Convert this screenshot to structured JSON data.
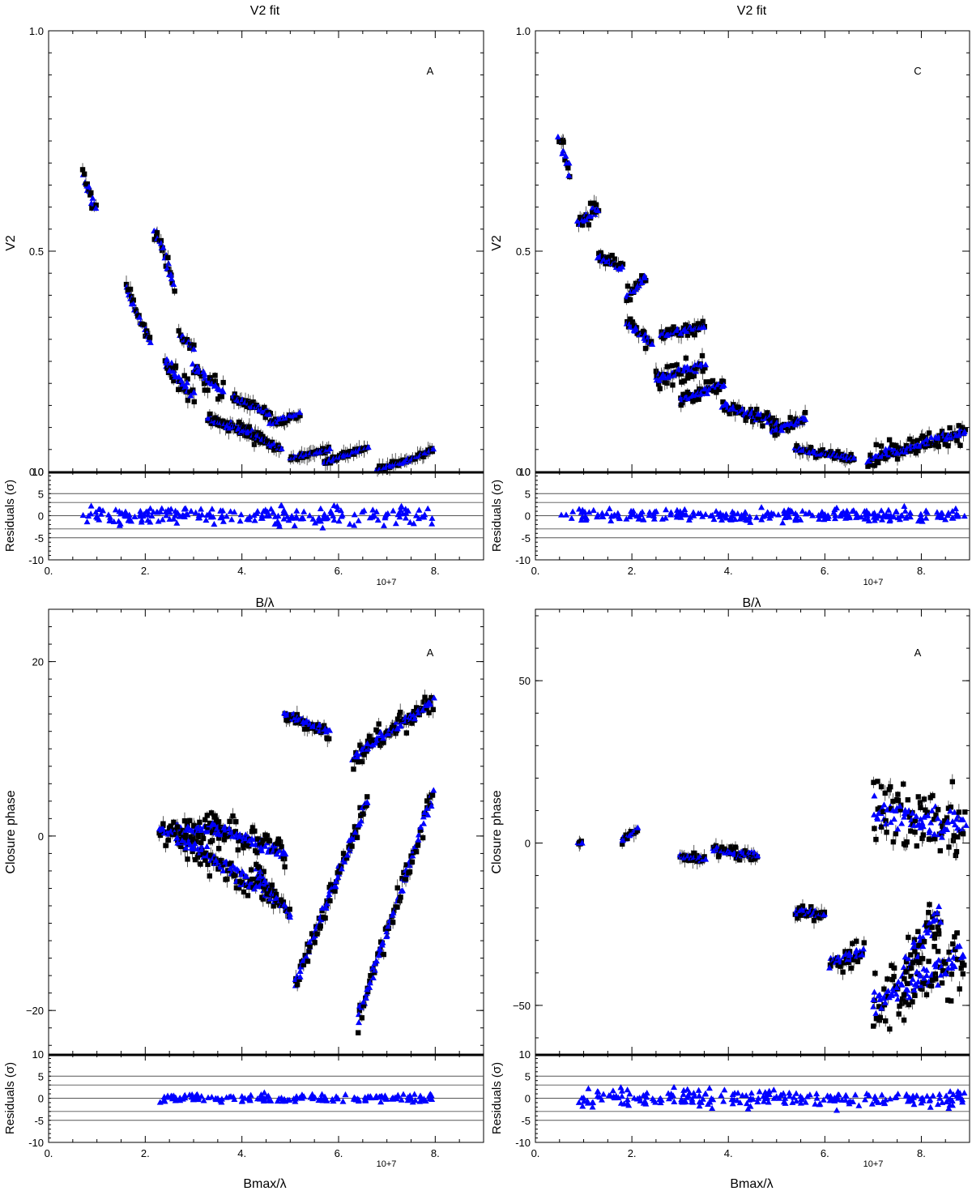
{
  "colors": {
    "observed": "#000000",
    "model": "#0000ff",
    "axis": "#000000",
    "residual_lines": "#555555"
  },
  "residual_label": "Residuals (σ)",
  "residual_ticks": [
    "10",
    "5",
    "0",
    "-5",
    "-10"
  ],
  "x_ticks": [
    "0.",
    "2.",
    "4.",
    "6.",
    "8."
  ],
  "x_multiplier": "10+7",
  "chart_data": [
    {
      "type": "scatter",
      "title": "V2  fit",
      "panel_label": "A",
      "xlabel": "B/λ",
      "ylabel": "V2",
      "xlim": [
        0,
        9
      ],
      "ylim": [
        0,
        1
      ],
      "y_ticks": [
        {
          "value": 0,
          "label": "0.0"
        },
        {
          "value": 0.5,
          "label": "0.5"
        },
        {
          "value": 1,
          "label": "1.0"
        }
      ],
      "zero_line": true,
      "legend": "none",
      "groups": [
        {
          "x": [
            0.7,
            0.97
          ],
          "y": [
            0.67,
            0.6
          ],
          "spread": 0.03
        },
        {
          "x": [
            1.6,
            2.1
          ],
          "y": [
            0.42,
            0.29
          ],
          "spread": 0.015
        },
        {
          "x": [
            2.2,
            2.6
          ],
          "y": [
            0.55,
            0.43
          ],
          "spread": 0.02
        },
        {
          "x": [
            2.4,
            3.0
          ],
          "y": [
            0.25,
            0.17
          ],
          "spread": 0.025
        },
        {
          "x": [
            2.7,
            3.0
          ],
          "y": [
            0.31,
            0.28
          ],
          "spread": 0.01
        },
        {
          "x": [
            3.0,
            3.6
          ],
          "y": [
            0.24,
            0.18
          ],
          "spread": 0.02
        },
        {
          "x": [
            3.3,
            4.4
          ],
          "y": [
            0.12,
            0.08
          ],
          "spread": 0.015
        },
        {
          "x": [
            3.8,
            4.6
          ],
          "y": [
            0.17,
            0.13
          ],
          "spread": 0.01
        },
        {
          "x": [
            4.0,
            4.8
          ],
          "y": [
            0.1,
            0.05
          ],
          "spread": 0.01
        },
        {
          "x": [
            4.6,
            5.2
          ],
          "y": [
            0.11,
            0.13
          ],
          "spread": 0.01
        },
        {
          "x": [
            5.0,
            5.8
          ],
          "y": [
            0.03,
            0.05
          ],
          "spread": 0.006
        },
        {
          "x": [
            5.7,
            6.6
          ],
          "y": [
            0.02,
            0.055
          ],
          "spread": 0.006
        },
        {
          "x": [
            6.8,
            7.3
          ],
          "y": [
            0.005,
            0.02
          ],
          "spread": 0.006
        },
        {
          "x": [
            7.3,
            7.95
          ],
          "y": [
            0.02,
            0.05
          ],
          "spread": 0.006
        }
      ],
      "residuals": {
        "x_range": [
          0.7,
          7.95
        ],
        "spread": 1.8
      }
    },
    {
      "type": "scatter",
      "title": "V2  fit",
      "panel_label": "C",
      "xlabel": "B/λ",
      "ylabel": "V2",
      "xlim": [
        0,
        9
      ],
      "ylim": [
        0,
        1
      ],
      "y_ticks": [
        {
          "value": 0,
          "label": "0.0"
        },
        {
          "value": 0.5,
          "label": "0.5"
        },
        {
          "value": 1,
          "label": "1.0"
        }
      ],
      "zero_line": true,
      "legend": "none",
      "groups": [
        {
          "x": [
            0.5,
            0.7
          ],
          "y": [
            0.76,
            0.68
          ],
          "spread": 0.025
        },
        {
          "x": [
            0.9,
            1.3
          ],
          "y": [
            0.56,
            0.6
          ],
          "spread": 0.02
        },
        {
          "x": [
            1.3,
            1.8
          ],
          "y": [
            0.49,
            0.46
          ],
          "spread": 0.012
        },
        {
          "x": [
            1.9,
            2.3
          ],
          "y": [
            0.4,
            0.44
          ],
          "spread": 0.015
        },
        {
          "x": [
            1.9,
            2.4
          ],
          "y": [
            0.34,
            0.29
          ],
          "spread": 0.015
        },
        {
          "x": [
            2.5,
            3.5
          ],
          "y": [
            0.21,
            0.24
          ],
          "spread": 0.02
        },
        {
          "x": [
            2.6,
            3.5
          ],
          "y": [
            0.31,
            0.33
          ],
          "spread": 0.012
        },
        {
          "x": [
            3.0,
            3.9
          ],
          "y": [
            0.16,
            0.2
          ],
          "spread": 0.015
        },
        {
          "x": [
            3.9,
            5.0
          ],
          "y": [
            0.15,
            0.11
          ],
          "spread": 0.015
        },
        {
          "x": [
            4.9,
            5.6
          ],
          "y": [
            0.09,
            0.12
          ],
          "spread": 0.012
        },
        {
          "x": [
            5.4,
            6.6
          ],
          "y": [
            0.05,
            0.03
          ],
          "spread": 0.008
        },
        {
          "x": [
            6.9,
            8.9
          ],
          "y": [
            0.03,
            0.09
          ],
          "spread": 0.02
        }
      ],
      "residuals": {
        "x_range": [
          0.5,
          8.9
        ],
        "spread": 1.3
      }
    },
    {
      "type": "scatter",
      "title": "B/λ",
      "panel_label": "A",
      "xlabel": "Bmax/λ",
      "ylabel": "Closure phase",
      "xlim": [
        0,
        9
      ],
      "ylim": [
        -25,
        26
      ],
      "y_ticks": [
        {
          "value": -20,
          "label": "−20"
        },
        {
          "value": 0,
          "label": "0"
        },
        {
          "value": 20,
          "label": "20"
        }
      ],
      "zero_line": false,
      "legend": "none",
      "groups": [
        {
          "x": [
            2.3,
            3.5
          ],
          "y": [
            0.5,
            1.0
          ],
          "spread": 1.2
        },
        {
          "x": [
            2.6,
            4.7
          ],
          "y": [
            0.0,
            -7.0
          ],
          "spread": 1.8
        },
        {
          "x": [
            3.4,
            4.9
          ],
          "y": [
            1.0,
            -2.0
          ],
          "spread": 1.5
        },
        {
          "x": [
            4.9,
            5.8
          ],
          "y": [
            14.0,
            12.0
          ],
          "spread": 0.8
        },
        {
          "x": [
            6.3,
            7.95
          ],
          "y": [
            9.0,
            15.5
          ],
          "spread": 1.2
        },
        {
          "x": [
            5.1,
            6.6
          ],
          "y": [
            -17.0,
            4.0
          ],
          "spread": 1.2
        },
        {
          "x": [
            6.4,
            7.95
          ],
          "y": [
            -21.0,
            5.0
          ],
          "spread": 1.2
        },
        {
          "x": [
            4.3,
            5.0
          ],
          "y": [
            -4.0,
            -9.0
          ],
          "spread": 1.0
        }
      ],
      "residuals": {
        "x_range": [
          2.3,
          7.95
        ],
        "spread": 0.8
      }
    },
    {
      "type": "scatter",
      "title": "B/λ",
      "panel_label": "A",
      "xlabel": "Bmax/λ",
      "ylabel": "Closure phase",
      "xlim": [
        0,
        9
      ],
      "ylim": [
        -65,
        72
      ],
      "y_ticks": [
        {
          "value": -50,
          "label": "−50"
        },
        {
          "value": 0,
          "label": "0"
        },
        {
          "value": 50,
          "label": "50"
        }
      ],
      "zero_line": false,
      "legend": "none",
      "groups": [
        {
          "x": [
            0.9,
            0.95
          ],
          "y": [
            0.0,
            0.0
          ],
          "spread": 0.5
        },
        {
          "x": [
            1.8,
            2.1
          ],
          "y": [
            1.0,
            4.0
          ],
          "spread": 1.5
        },
        {
          "x": [
            3.0,
            3.5
          ],
          "y": [
            -4.0,
            -5.0
          ],
          "spread": 1.0
        },
        {
          "x": [
            3.7,
            4.6
          ],
          "y": [
            -2.0,
            -4.0
          ],
          "spread": 2.0
        },
        {
          "x": [
            5.4,
            6.0
          ],
          "y": [
            -21.0,
            -22.0
          ],
          "spread": 2.0
        },
        {
          "x": [
            6.1,
            6.8
          ],
          "y": [
            -37.0,
            -33.0
          ],
          "spread": 4.0
        },
        {
          "x": [
            7.0,
            8.9
          ],
          "y": [
            10.0,
            5.0
          ],
          "spread": 10.0
        },
        {
          "x": [
            7.0,
            8.9
          ],
          "y": [
            -50.0,
            -35.0
          ],
          "spread": 10.0
        },
        {
          "x": [
            7.6,
            8.4
          ],
          "y": [
            -40.0,
            -20.0
          ],
          "spread": 8.0
        }
      ],
      "residuals": {
        "x_range": [
          0.9,
          8.9
        ],
        "spread": 1.8
      }
    }
  ]
}
